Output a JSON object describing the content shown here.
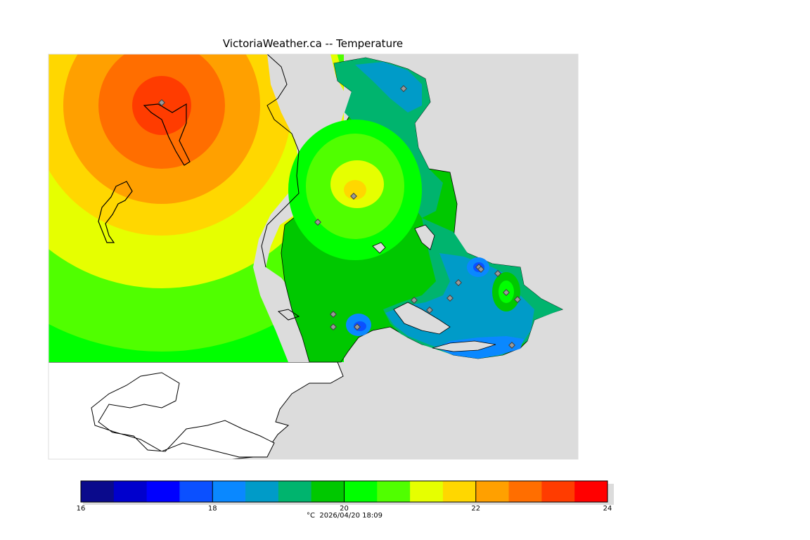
{
  "title": "VictoriaWeather.ca -- Temperature",
  "colors": {
    "background": "#dcdcdc",
    "land_outside": "#ffffff",
    "coast": "#000000"
  },
  "legend": {
    "unit": "°C",
    "timestamp": "2026/04/20 18:09",
    "ticks": [
      "16",
      "18",
      "20",
      "22",
      "24"
    ],
    "bands": [
      "#0a0a8c",
      "#0000cd",
      "#0000ff",
      "#0b50ff",
      "#0a88ff",
      "#009bc8",
      "#00b46e",
      "#00c800",
      "#00ff00",
      "#50ff00",
      "#e6ff00",
      "#ffd700",
      "#ffa000",
      "#ff6e00",
      "#ff3c00",
      "#ff0000"
    ]
  }
}
